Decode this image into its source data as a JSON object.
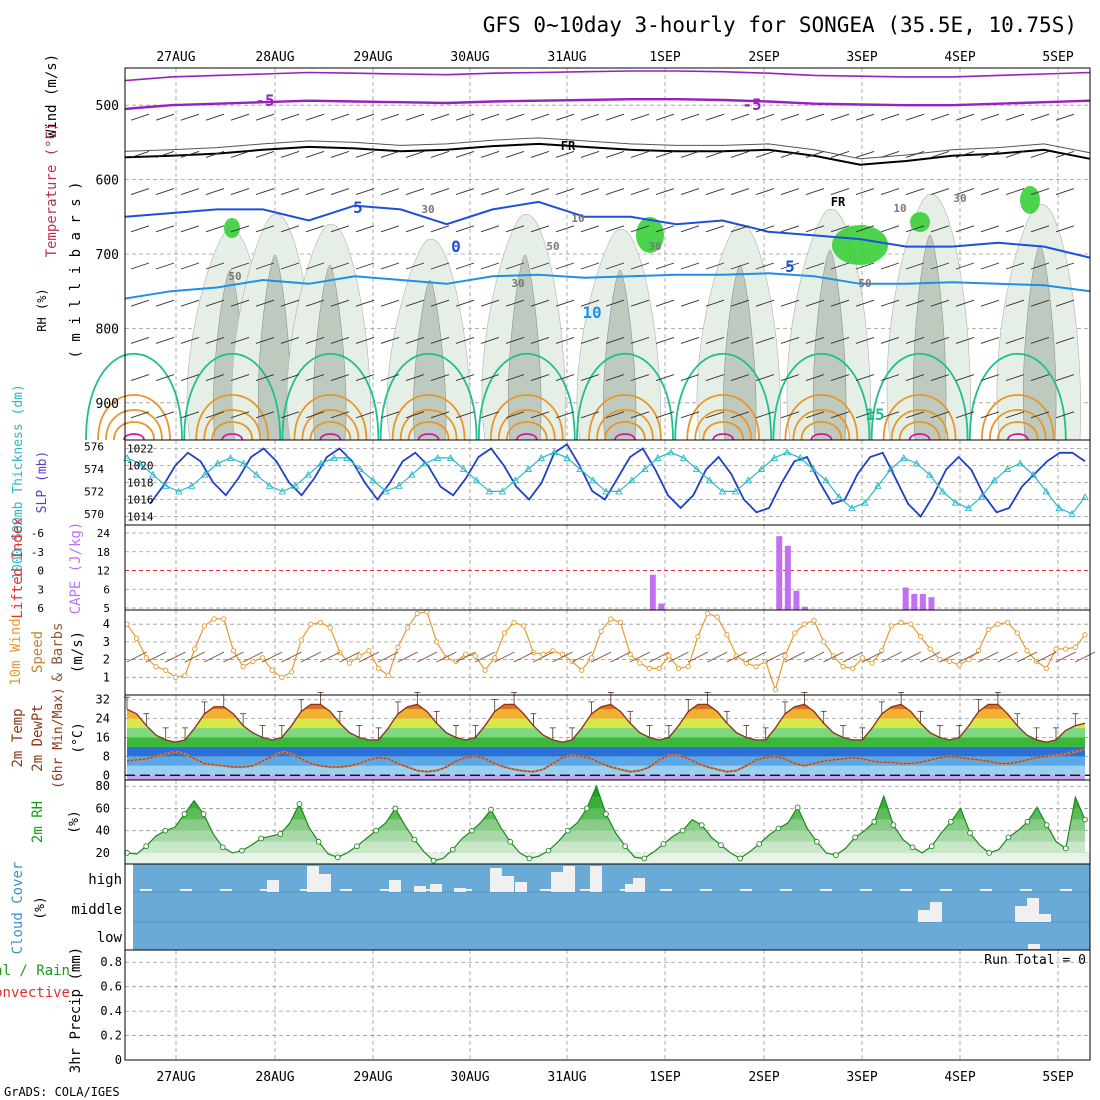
{
  "title": "GFS 0~10day 3-hourly for SONGEA (35.5E, 10.75S)",
  "credit": "GrADS: COLA/IGES",
  "colors": {
    "grid": "#999999",
    "purple": "#9b1fbf",
    "black": "#000000",
    "blue": "#1f4fd8",
    "lightblue": "#1e90e8",
    "teal": "#1fbf8f",
    "orange": "#e8962a",
    "magenta": "#d01aa0",
    "rhfill": "#2ecc2e",
    "slp": "#1f3fc8",
    "thick": "#2ab8c8",
    "cape": "#c070f0",
    "li": "#e83030",
    "wind": "#e89a30",
    "temp": "#8b3a1a",
    "dewpt": "#8b3a1a",
    "cloudbg": "#6aaad6",
    "cloudblock": "#f0f0f0"
  },
  "chart_data": [
    {
      "id": "upper-air",
      "type": "heatmap",
      "ylabel_wind": "Wind (m/s)",
      "ylabel_temp": "Temperature (°C)",
      "ylabel_rh": "RH (%)",
      "ylabel_p": "( m i l l i b a r s )",
      "y_ticks": [
        "500",
        "600",
        "700",
        "800",
        "900"
      ],
      "ylim": [
        950,
        450
      ],
      "contour_labels": [
        "-5",
        "-5",
        "FR",
        "FR",
        "5",
        "0",
        "5",
        "10",
        "15",
        "50",
        "50",
        "30",
        "10",
        "30",
        "30",
        "50",
        "30",
        "10"
      ],
      "isotherm_levels_hpa": {
        "minus5": [
          505,
          500,
          498,
          496,
          494,
          495,
          496,
          497,
          495,
          494,
          493,
          492,
          492,
          493,
          495,
          498,
          499,
          500,
          500,
          498,
          496,
          494
        ],
        "freezing": [
          570,
          568,
          565,
          560,
          556,
          558,
          562,
          560,
          555,
          552,
          556,
          560,
          562,
          562,
          560,
          568,
          580,
          575,
          568,
          565,
          560,
          572
        ],
        "plus5": [
          650,
          645,
          640,
          640,
          655,
          635,
          640,
          660,
          640,
          630,
          650,
          650,
          660,
          655,
          670,
          675,
          680,
          690,
          690,
          685,
          690,
          705
        ],
        "plus10": [
          760,
          750,
          745,
          735,
          740,
          730,
          735,
          740,
          730,
          728,
          732,
          730,
          728,
          728,
          726,
          730,
          740,
          740,
          738,
          740,
          742,
          750
        ]
      }
    },
    {
      "id": "slp-thickness",
      "type": "line",
      "ylabel_left": "1000-500mb Thickness (dm)",
      "ylabel_right": "SLP (mb)",
      "left_ticks": [
        "576",
        "574",
        "572",
        "570"
      ],
      "right_ticks": [
        "1022",
        "1020",
        "1018",
        "1016",
        "1014"
      ],
      "ylim_slp": [
        1013,
        1023
      ],
      "series": [
        {
          "name": "SLP (mb)",
          "values": [
            1015.5,
            1017.5,
            1020,
            1021.5,
            1020.5,
            1018,
            1016.5,
            1018.5,
            1021,
            1022,
            1020.5,
            1018,
            1016.5,
            1018.5,
            1021,
            1022,
            1020.5,
            1018,
            1016,
            1018,
            1020.5,
            1021.5,
            1020,
            1017.5,
            1016.5,
            1018.5,
            1021,
            1022,
            1020,
            1017.5,
            1016,
            1018,
            1021.5,
            1022.5,
            1020,
            1017,
            1016,
            1018.5,
            1021,
            1022,
            1019.5,
            1016.5,
            1015,
            1016.5,
            1019.5,
            1021,
            1019,
            1016,
            1014.5,
            1015,
            1018,
            1020.5,
            1021,
            1018,
            1015.5,
            1016,
            1019,
            1021,
            1021.5,
            1018.5,
            1015.5,
            1014,
            1016.5,
            1019.5,
            1021,
            1019.5,
            1016.5,
            1014.5,
            1015,
            1017.5,
            1019,
            1020.5,
            1021.5,
            1021.5,
            1020.5
          ]
        },
        {
          "name": "1000-500mb Thickness (dm)",
          "values": [
            575,
            574.5,
            573.5,
            572.5,
            572,
            572.5,
            573.5,
            574.5,
            575,
            574.5,
            573.5,
            572.5,
            572,
            572.5,
            573.5,
            574.5,
            575,
            575,
            574,
            573,
            572,
            572.5,
            573.5,
            574.5,
            575,
            575,
            574,
            573,
            572,
            572,
            573,
            574,
            575,
            575.5,
            575,
            574,
            573,
            572,
            572,
            573,
            574,
            575,
            575.5,
            575,
            574,
            573,
            572,
            572,
            573,
            574,
            575,
            575.5,
            575,
            574,
            573,
            571.5,
            570.5,
            571,
            572.5,
            574,
            575,
            574.5,
            573.5,
            572,
            571,
            570.5,
            571.5,
            573,
            574,
            574.5,
            573.5,
            572,
            570.5,
            570,
            571.5
          ]
        }
      ]
    },
    {
      "id": "cape-li",
      "type": "bar",
      "ylabel_left": "Lifted Index",
      "ylabel_right": "CAPE (J/kg)",
      "left_ticks": [
        "-6",
        "-3",
        "0",
        "3",
        "6"
      ],
      "right_ticks": [
        "24",
        "18",
        "12",
        "6",
        "5"
      ],
      "series": [
        {
          "name": "CAPE (J/kg)",
          "bars": [
            {
              "x": 46.6,
              "value": 11
            },
            {
              "x": 47.3,
              "value": 2
            },
            {
              "x": 56.9,
              "value": 23
            },
            {
              "x": 57.6,
              "value": 20
            },
            {
              "x": 58.3,
              "value": 6
            },
            {
              "x": 59.0,
              "value": 1
            },
            {
              "x": 67.2,
              "value": 7
            },
            {
              "x": 67.9,
              "value": 5
            },
            {
              "x": 68.6,
              "value": 5
            },
            {
              "x": 69.3,
              "value": 4
            }
          ]
        }
      ]
    },
    {
      "id": "wind-10m",
      "type": "line",
      "ylabel": "10m Wind Speed & Barbs (m/s)",
      "y_ticks": [
        "4",
        "3",
        "2",
        "1"
      ],
      "ylim": [
        0,
        4.8
      ],
      "series": [
        {
          "name": "10m Wind Speed",
          "values": [
            4.0,
            3.2,
            2.1,
            1.6,
            1.4,
            1.0,
            1.1,
            2.6,
            3.9,
            4.3,
            4.3,
            2.5,
            1.6,
            1.9,
            2.1,
            1.4,
            1.0,
            1.3,
            3.1,
            4.0,
            4.1,
            3.8,
            2.4,
            1.8,
            2.2,
            2.5,
            1.5,
            1.1,
            2.7,
            3.8,
            4.6,
            4.7,
            3.0,
            2.1,
            1.9,
            2.3,
            2.2,
            1.4,
            2.1,
            3.5,
            4.1,
            3.9,
            2.4,
            2.3,
            2.5,
            2.3,
            1.9,
            1.4,
            2.1,
            3.6,
            4.3,
            4.1,
            2.3,
            1.8,
            1.5,
            1.5,
            2.2,
            1.5,
            1.6,
            3.3,
            4.6,
            4.4,
            3.4,
            2.2,
            1.8,
            1.6,
            1.9,
            0.3,
            2.2,
            3.5,
            4.0,
            4.2,
            3.0,
            2.2,
            1.6,
            1.5,
            2.1,
            1.8,
            2.5,
            3.9,
            4.1,
            4.0,
            3.3,
            2.6,
            2.0,
            1.9,
            1.7,
            2.0,
            2.5,
            3.7,
            4.0,
            4.1,
            3.5,
            2.5,
            1.9,
            1.5,
            2.6,
            2.6,
            2.7,
            3.4
          ]
        }
      ]
    },
    {
      "id": "temp-2m",
      "type": "area",
      "ylabel": "2m Temp 2m DewPt (6hr Min/Max) (°C)",
      "y_ticks": [
        "32",
        "24",
        "16",
        "8",
        "0"
      ],
      "ylim": [
        -2,
        34
      ],
      "series": [
        {
          "name": "2m Temp",
          "values": [
            28,
            26,
            21,
            17,
            15,
            14,
            15,
            20,
            26,
            29,
            29,
            26,
            21,
            18,
            16,
            15,
            16,
            21,
            27,
            30,
            30,
            27,
            22,
            18,
            16,
            15,
            15,
            20,
            26,
            29,
            30,
            27,
            22,
            18,
            16,
            15,
            16,
            21,
            27,
            30,
            30,
            26,
            21,
            17,
            15,
            14,
            15,
            20,
            26,
            29,
            30,
            27,
            22,
            18,
            16,
            15,
            16,
            21,
            27,
            30,
            30,
            27,
            22,
            18,
            16,
            15,
            15,
            20,
            26,
            29,
            30,
            27,
            22,
            18,
            16,
            15,
            15,
            20,
            26,
            29,
            30,
            27,
            22,
            18,
            16,
            15,
            16,
            21,
            27,
            30,
            30,
            26,
            21,
            17,
            15,
            14,
            15,
            19,
            21,
            22
          ]
        },
        {
          "name": "2m DewPt",
          "values": [
            6,
            6.5,
            7,
            8,
            9,
            10,
            9,
            7,
            5,
            4.5,
            4,
            3.5,
            3.5,
            4,
            6,
            8,
            10,
            9,
            7,
            5,
            4,
            3.5,
            3.5,
            4,
            5,
            6.5,
            7.5,
            7,
            5,
            3.5,
            2,
            1.5,
            2,
            3.5,
            6,
            7.5,
            8,
            7,
            5,
            3.5,
            2.5,
            1.8,
            1.5,
            2.5,
            5,
            7.5,
            8.5,
            8,
            7,
            5,
            3.5,
            2.5,
            1.5,
            2,
            3.5,
            6.5,
            8.5,
            8.5,
            7,
            5,
            3.5,
            2.5,
            1.5,
            2,
            4,
            6.5,
            7.5,
            8,
            7,
            5,
            4,
            5,
            6,
            6.5,
            7,
            7.5,
            7,
            6,
            5.5,
            5.5,
            5,
            5,
            5.5,
            6.5,
            7.5,
            8,
            7.5,
            7,
            6.5,
            6,
            5,
            5,
            5.5,
            6.5,
            7.5,
            8,
            8.5,
            9,
            10,
            11
          ]
        }
      ]
    },
    {
      "id": "rh-2m",
      "type": "area",
      "ylabel": "2m RH (%)",
      "y_ticks": [
        "80",
        "60",
        "40",
        "20"
      ],
      "ylim": [
        10,
        82
      ],
      "series": [
        {
          "name": "2m RH",
          "values": [
            20,
            19,
            26,
            35,
            40,
            43,
            55,
            67,
            55,
            37,
            25,
            20,
            22,
            27,
            33,
            35,
            37,
            47,
            64,
            43,
            30,
            19,
            16,
            20,
            26,
            33,
            40,
            47,
            60,
            45,
            32,
            21,
            13,
            15,
            23,
            33,
            40,
            48,
            59,
            43,
            30,
            20,
            15,
            17,
            22,
            30,
            40,
            47,
            60,
            80,
            55,
            38,
            26,
            16,
            15,
            21,
            28,
            35,
            40,
            50,
            45,
            34,
            27,
            20,
            15,
            21,
            28,
            36,
            42,
            47,
            61,
            42,
            30,
            20,
            18,
            24,
            34,
            40,
            48,
            71,
            45,
            32,
            25,
            20,
            26,
            38,
            48,
            60,
            38,
            27,
            20,
            23,
            34,
            40,
            48,
            61,
            45,
            30,
            24,
            70,
            50
          ]
        }
      ]
    },
    {
      "id": "cloud-cover",
      "type": "bar",
      "ylabel": "Cloud Cover (%)",
      "level_labels": [
        "high",
        "middle",
        "low"
      ]
    },
    {
      "id": "precip-3hr",
      "type": "bar",
      "ylabel_left_1": "Total / Rain",
      "ylabel_left_2": "Convective",
      "ylabel": "3hr Precip (mm)",
      "y_ticks": [
        "0.8",
        "0.6",
        "0.4",
        "0.2",
        "0"
      ],
      "ylim": [
        0,
        0.9
      ],
      "run_total": "Run Total = 0",
      "values": []
    }
  ],
  "x_axis": {
    "dates_top": [
      "27AUG",
      "28AUG",
      "29AUG",
      "30AUG",
      "31AUG",
      "1SEP",
      "2SEP",
      "3SEP",
      "4SEP",
      "5SEP"
    ],
    "dates_bottom": [
      "27AUG",
      "28AUG",
      "29AUG",
      "30AUG",
      "31AUG",
      "1SEP",
      "2SEP",
      "3SEP",
      "4SEP",
      "5SEP"
    ]
  }
}
